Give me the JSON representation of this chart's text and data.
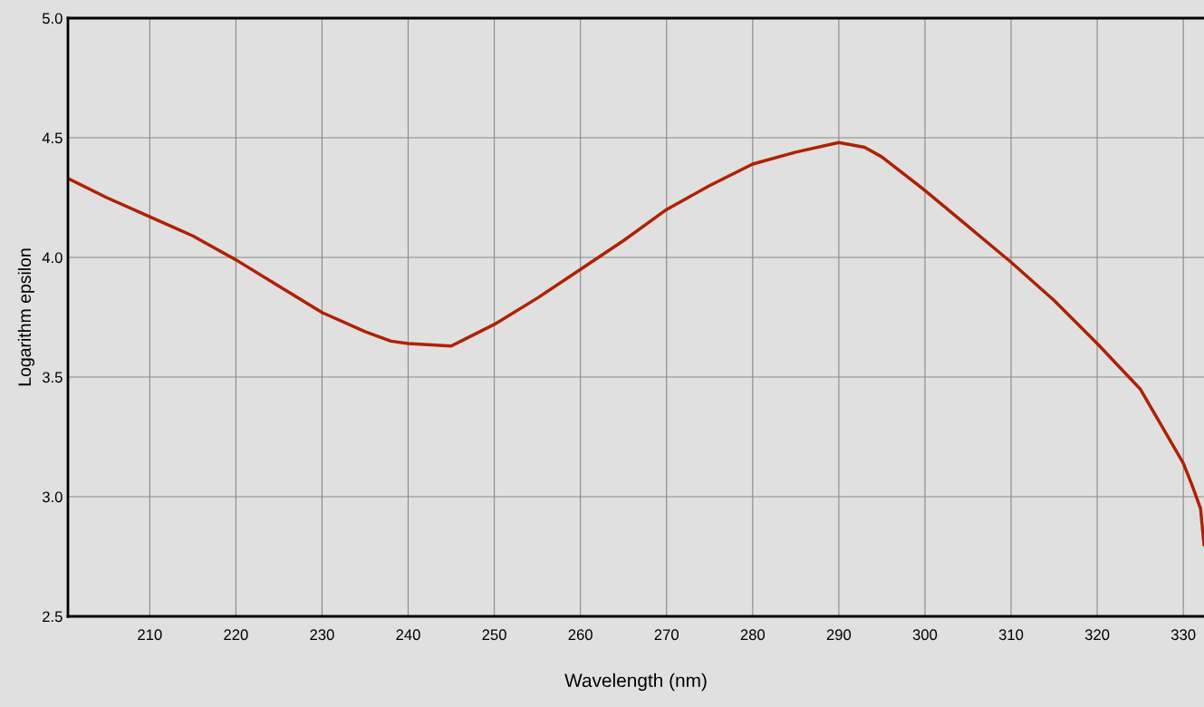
{
  "chart_data": {
    "type": "line",
    "xlabel": "Wavelength (nm)",
    "ylabel": "Logarithm epsilon",
    "xlim": [
      200.5,
      332.4
    ],
    "xticks": [
      210,
      220,
      230,
      240,
      250,
      260,
      270,
      280,
      290,
      300,
      310,
      320,
      330
    ],
    "ylim": [
      2.5,
      5.0
    ],
    "yticks": [
      {
        "value": 2.5,
        "label": "2.5"
      },
      {
        "value": 3.0,
        "label": "3.0"
      },
      {
        "value": 3.5,
        "label": "3.5"
      },
      {
        "value": 4.0,
        "label": "4.0"
      },
      {
        "value": 4.5,
        "label": "4.5"
      },
      {
        "value": 5.0,
        "label": "5.0"
      }
    ],
    "grid": true,
    "marker": "none",
    "line_style": "solid",
    "series": [
      {
        "color": "#b02000",
        "x": [
          200.5,
          205,
          210,
          215,
          220,
          225,
          230,
          235,
          238,
          240,
          245,
          250,
          255,
          260,
          265,
          270,
          275,
          280,
          285,
          290,
          293,
          295,
          300,
          305,
          310,
          315,
          320,
          325,
          330,
          331,
          332,
          332.4
        ],
        "values": [
          4.33,
          4.25,
          4.17,
          4.09,
          3.99,
          3.88,
          3.77,
          3.69,
          3.65,
          3.64,
          3.63,
          3.72,
          3.83,
          3.95,
          4.07,
          4.2,
          4.3,
          4.39,
          4.44,
          4.48,
          4.46,
          4.42,
          4.28,
          4.13,
          3.98,
          3.82,
          3.64,
          3.45,
          3.14,
          3.05,
          2.95,
          2.8
        ]
      }
    ]
  }
}
